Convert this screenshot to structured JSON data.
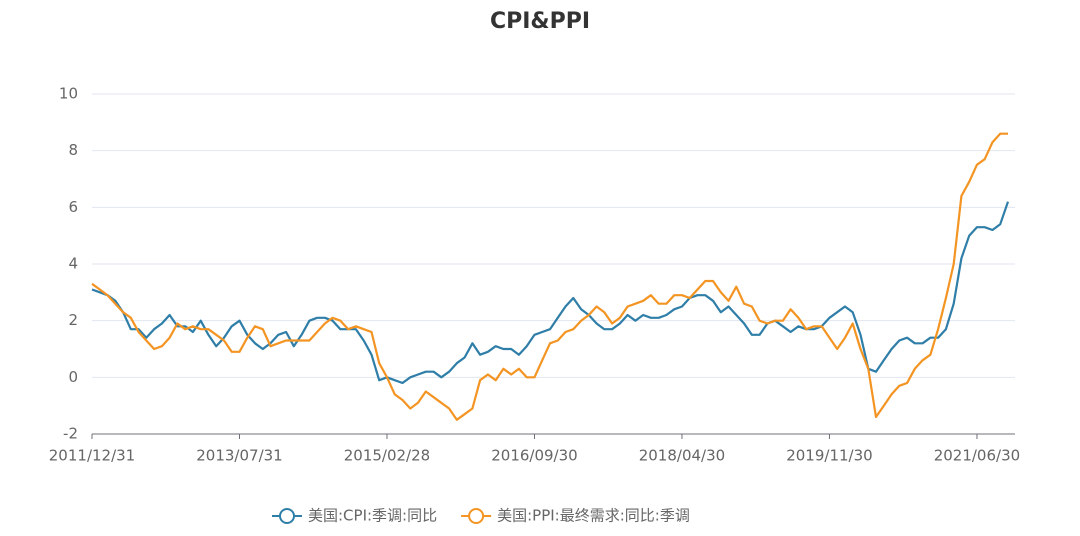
{
  "chart_data": {
    "type": "line",
    "title": "CPI&PPI",
    "categories": [
      "2011/12/31",
      null,
      null,
      null,
      null,
      null,
      null,
      null,
      null,
      null,
      null,
      null,
      null,
      null,
      null,
      null,
      null,
      null,
      null,
      "2013/07/31",
      null,
      null,
      null,
      null,
      null,
      null,
      null,
      null,
      null,
      null,
      null,
      null,
      null,
      null,
      null,
      null,
      null,
      null,
      "2015/02/28",
      null,
      null,
      null,
      null,
      null,
      null,
      null,
      null,
      null,
      null,
      null,
      null,
      null,
      null,
      null,
      null,
      null,
      null,
      "2016/09/30",
      null,
      null,
      null,
      null,
      null,
      null,
      null,
      null,
      null,
      null,
      null,
      null,
      null,
      null,
      null,
      null,
      null,
      null,
      "2018/04/30",
      null,
      null,
      null,
      null,
      null,
      null,
      null,
      null,
      null,
      null,
      null,
      null,
      null,
      null,
      null,
      null,
      null,
      null,
      "2019/11/30",
      null,
      null,
      null,
      null,
      null,
      null,
      null,
      null,
      null,
      null,
      null,
      null,
      null,
      null,
      null,
      null,
      null,
      null,
      "2021/06/30",
      null,
      null,
      null,
      null
    ],
    "series": [
      {
        "name": "美国:CPI:季调:同比",
        "color": "#2f7ea8",
        "values": [
          3.1,
          3.0,
          2.9,
          2.7,
          2.3,
          1.7,
          1.7,
          1.4,
          1.7,
          1.9,
          2.2,
          1.8,
          1.8,
          1.6,
          2.0,
          1.5,
          1.1,
          1.4,
          1.8,
          2.0,
          1.5,
          1.2,
          1.0,
          1.2,
          1.5,
          1.6,
          1.1,
          1.5,
          2.0,
          2.1,
          2.1,
          2.0,
          1.7,
          1.7,
          1.7,
          1.3,
          0.8,
          -0.1,
          0.0,
          -0.1,
          -0.2,
          0.0,
          0.1,
          0.2,
          0.2,
          0.0,
          0.2,
          0.5,
          0.7,
          1.2,
          0.8,
          0.9,
          1.1,
          1.0,
          1.0,
          0.8,
          1.1,
          1.5,
          1.6,
          1.7,
          2.1,
          2.5,
          2.8,
          2.4,
          2.2,
          1.9,
          1.7,
          1.7,
          1.9,
          2.2,
          2.0,
          2.2,
          2.1,
          2.1,
          2.2,
          2.4,
          2.5,
          2.8,
          2.9,
          2.9,
          2.7,
          2.3,
          2.5,
          2.2,
          1.9,
          1.5,
          1.5,
          1.9,
          2.0,
          1.8,
          1.6,
          1.8,
          1.7,
          1.7,
          1.8,
          2.1,
          2.3,
          2.5,
          2.3,
          1.5,
          0.3,
          0.2,
          0.6,
          1.0,
          1.3,
          1.4,
          1.2,
          1.2,
          1.4,
          1.4,
          1.7,
          2.6,
          4.2,
          5.0,
          5.3,
          5.3,
          5.2,
          5.4,
          6.2
        ]
      },
      {
        "name": "美国:PPI:最终需求:同比:季调",
        "color": "#f39423",
        "values": [
          3.3,
          3.1,
          2.9,
          2.6,
          2.3,
          2.1,
          1.6,
          1.3,
          1.0,
          1.1,
          1.4,
          1.9,
          1.7,
          1.8,
          1.7,
          1.7,
          1.5,
          1.3,
          0.9,
          0.9,
          1.4,
          1.8,
          1.7,
          1.1,
          1.2,
          1.3,
          1.3,
          1.3,
          1.3,
          1.6,
          1.9,
          2.1,
          2.0,
          1.7,
          1.8,
          1.7,
          1.6,
          0.5,
          0.0,
          -0.6,
          -0.8,
          -1.1,
          -0.9,
          -0.5,
          -0.7,
          -0.9,
          -1.1,
          -1.5,
          -1.3,
          -1.1,
          -0.1,
          0.1,
          -0.1,
          0.3,
          0.1,
          0.3,
          0.0,
          0.0,
          0.6,
          1.2,
          1.3,
          1.6,
          1.7,
          2.0,
          2.2,
          2.5,
          2.3,
          1.9,
          2.1,
          2.5,
          2.6,
          2.7,
          2.9,
          2.6,
          2.6,
          2.9,
          2.9,
          2.8,
          3.1,
          3.4,
          3.4,
          3.0,
          2.7,
          3.2,
          2.6,
          2.5,
          2.0,
          1.9,
          2.0,
          2.0,
          2.4,
          2.1,
          1.7,
          1.8,
          1.8,
          1.4,
          1.0,
          1.4,
          1.9,
          1.0,
          0.3,
          -1.4,
          -1.0,
          -0.6,
          -0.3,
          -0.2,
          0.3,
          0.6,
          0.8,
          1.7,
          2.8,
          4.0,
          6.4,
          6.9,
          7.5,
          7.7,
          8.3,
          8.6,
          8.6
        ]
      }
    ],
    "ylim": [
      -2,
      10
    ],
    "yticks": [
      -2,
      0,
      2,
      4,
      6,
      8,
      10
    ],
    "grid": true,
    "legend": "bottom"
  }
}
